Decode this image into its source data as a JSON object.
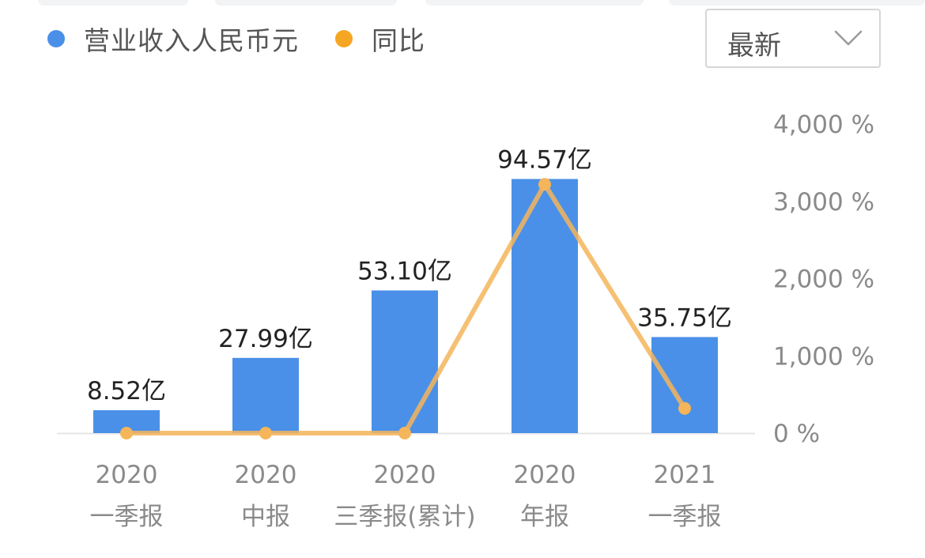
{
  "legend": {
    "revenue_label": "营业收入人民币元",
    "yoy_label": "同比",
    "revenue_color": "#4a90e8",
    "yoy_color": "#f5a623"
  },
  "dropdown": {
    "selected": "最新",
    "icon": "chevron-down-icon"
  },
  "chart_data": {
    "type": "bar",
    "categories": [
      [
        "2020",
        "一季报"
      ],
      [
        "2020",
        "中报"
      ],
      [
        "2020",
        "三季报(累计)"
      ],
      [
        "2020",
        "年报"
      ],
      [
        "2021",
        "一季报"
      ]
    ],
    "series": [
      {
        "name": "营业收入人民币元",
        "type": "bar",
        "axis": "left",
        "values": [
          8.52,
          27.99,
          53.1,
          94.57,
          35.75
        ],
        "labels": [
          "8.52亿",
          "27.99亿",
          "53.10亿",
          "94.57亿",
          "35.75亿"
        ],
        "color": "#4a90e8"
      },
      {
        "name": "同比",
        "type": "line",
        "axis": "right",
        "values": [
          0,
          0,
          0,
          3220,
          320
        ],
        "color": "#f5b55a"
      }
    ],
    "left_axis": {
      "ylim": [
        0,
        115
      ]
    },
    "right_axis": {
      "ylim": [
        0,
        4000
      ],
      "ticks": [
        0,
        1000,
        2000,
        3000,
        4000
      ],
      "tick_labels": [
        "0 %",
        "1,000 %",
        "2,000 %",
        "3,000 %",
        "4,000 %"
      ]
    },
    "title": "",
    "xlabel": "",
    "ylabel": "",
    "grid": false,
    "legend_position": "top-left"
  }
}
